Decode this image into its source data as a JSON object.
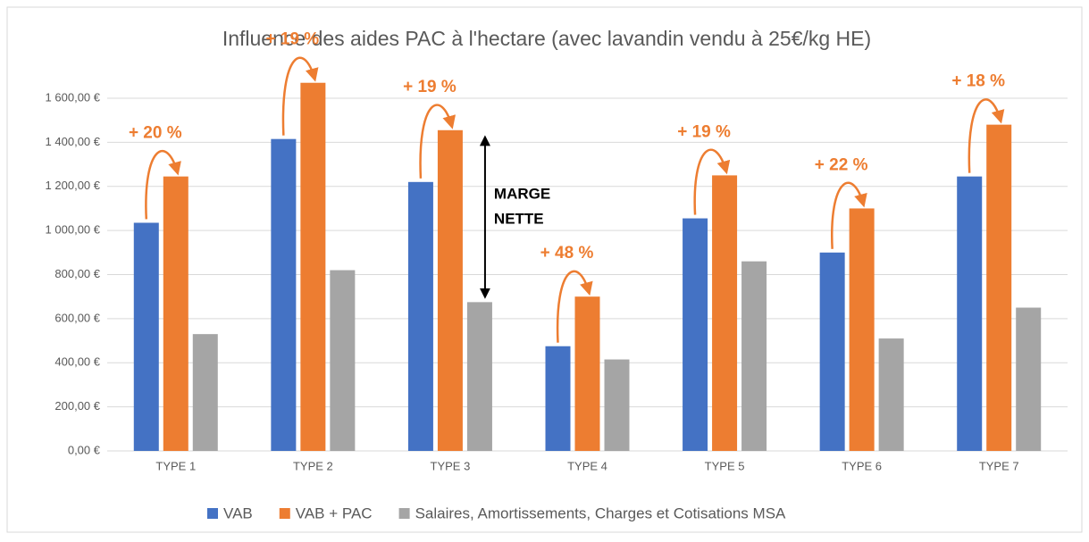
{
  "chart_data": {
    "type": "bar",
    "title": "Influence des aides PAC à l'hectare (avec lavandin vendu à 25€/kg HE)",
    "categories": [
      "TYPE 1",
      "TYPE 2",
      "TYPE 3",
      "TYPE 4",
      "TYPE 5",
      "TYPE 6",
      "TYPE 7"
    ],
    "series": [
      {
        "name": "VAB",
        "color": "#4472c4",
        "values": [
          1035,
          1415,
          1220,
          475,
          1055,
          900,
          1245
        ]
      },
      {
        "name": "VAB + PAC",
        "color": "#ed7d31",
        "values": [
          1245,
          1670,
          1455,
          700,
          1250,
          1100,
          1480
        ]
      },
      {
        "name": "Salaires, Amortissements, Charges et Cotisations MSA",
        "color": "#a5a5a5",
        "values": [
          530,
          820,
          675,
          415,
          860,
          510,
          650
        ]
      }
    ],
    "annotations": [
      "+ 20 %",
      "+ 19 %",
      "+ 19 %",
      "+ 48 %",
      "+ 19 %",
      "+ 22 %",
      "+ 18 %"
    ],
    "margin_label": [
      "MARGE",
      "NETTE"
    ],
    "ylim": [
      0,
      1600
    ],
    "yticks": [
      {
        "value": 0,
        "label": "0,00 €"
      },
      {
        "value": 200,
        "label": "200,00 €"
      },
      {
        "value": 400,
        "label": "400,00 €"
      },
      {
        "value": 600,
        "label": "600,00 €"
      },
      {
        "value": 800,
        "label": "800,00 €"
      },
      {
        "value": 1000,
        "label": "1 000,00 €"
      },
      {
        "value": 1200,
        "label": "1 200,00 €"
      },
      {
        "value": 1400,
        "label": "1 400,00 €"
      },
      {
        "value": 1600,
        "label": "1 600,00 €"
      }
    ],
    "grid": true,
    "legend": "bottom"
  }
}
